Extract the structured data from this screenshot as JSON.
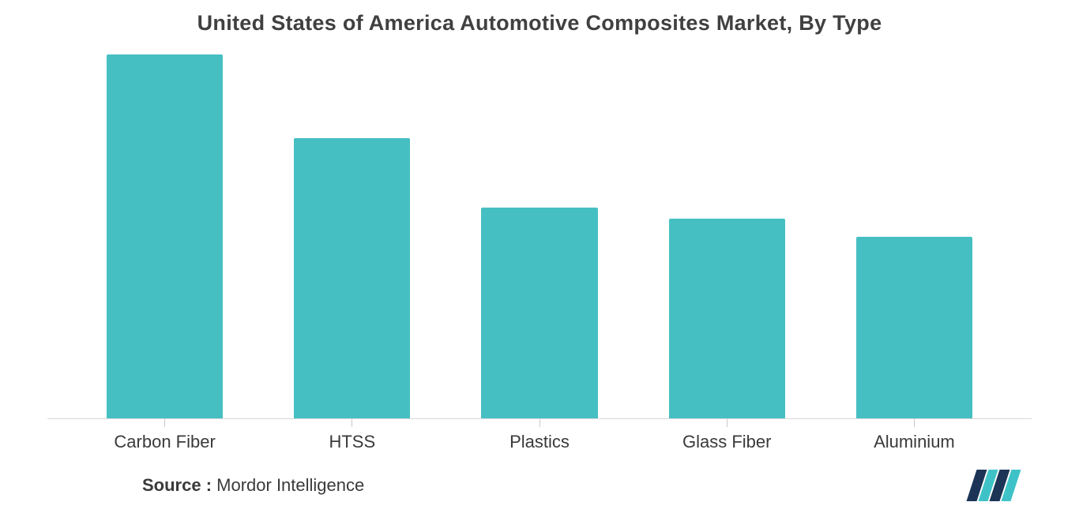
{
  "chart": {
    "type": "bar",
    "title": "United States of America Automotive Composites Market, By Type",
    "title_fontsize": 27,
    "title_color": "#404040",
    "background_color": "#ffffff",
    "baseline_color": "#d8d8d8",
    "tick_color": "#c8c8c8",
    "ylim": [
      0,
      100
    ],
    "bar_width_pct": 62,
    "categories": [
      "Carbon Fiber",
      "HTSS",
      "Plastics",
      "Glass Fiber",
      "Aluminium"
    ],
    "values": [
      100,
      77,
      58,
      55,
      50
    ],
    "bar_colors": [
      "#46bfc3",
      "#46bfc3",
      "#46bfc3",
      "#46bfc3",
      "#46bfc3"
    ],
    "label_fontsize": 22,
    "label_color": "#3a3a3a"
  },
  "footer": {
    "source_label": "Source :",
    "source_text": " Mordor Intelligence",
    "font_size": 22,
    "text_color": "#3a3a3a"
  },
  "logo": {
    "name": "mordor-intelligence-logo",
    "stripe_colors": [
      "#1c3556",
      "#3fc2c7",
      "#1c3556",
      "#3fc2c7"
    ]
  }
}
